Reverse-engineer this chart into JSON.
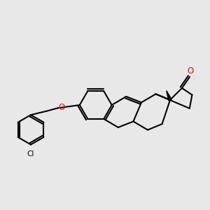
{
  "bg_color": "#e8e8e8",
  "bond_color": "#000000",
  "oxygen_color": "#ff0000",
  "line_width": 1.5,
  "figsize": [
    3.0,
    3.0
  ],
  "dpi": 100,
  "xlim": [
    0.0,
    1.0
  ],
  "ylim": [
    0.05,
    0.95
  ]
}
